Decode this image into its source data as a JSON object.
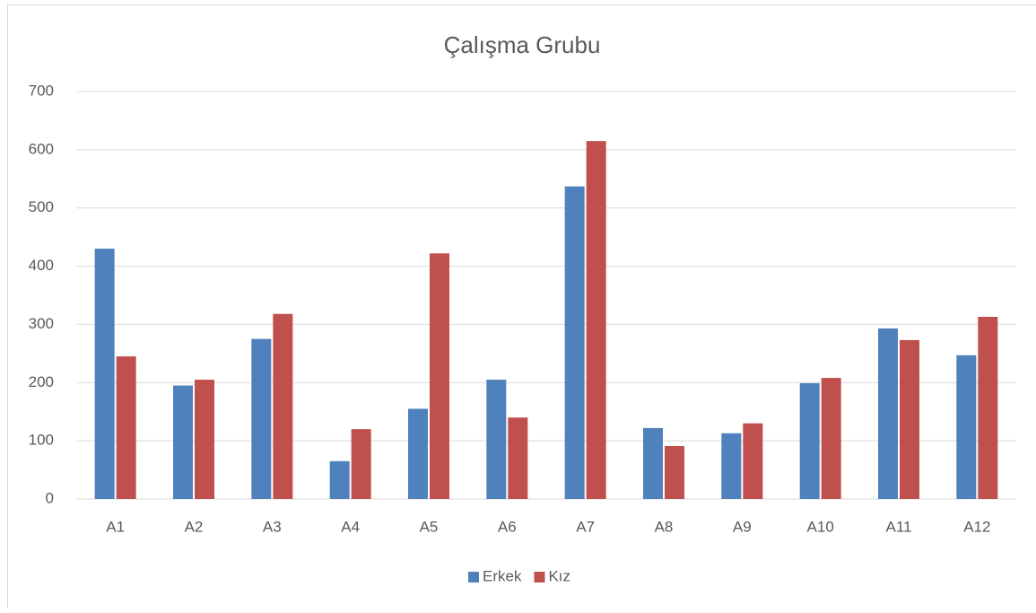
{
  "chart_data": {
    "type": "bar",
    "title": "Çalışma Grubu",
    "categories": [
      "A1",
      "A2",
      "A3",
      "A4",
      "A5",
      "A6",
      "A7",
      "A8",
      "A9",
      "A10",
      "A11",
      "A12"
    ],
    "series": [
      {
        "name": "Erkek",
        "color": "#4f81bd",
        "values": [
          430,
          195,
          275,
          65,
          155,
          205,
          537,
          122,
          113,
          199,
          293,
          247
        ]
      },
      {
        "name": "Kız",
        "color": "#c0504d",
        "values": [
          245,
          205,
          318,
          120,
          422,
          140,
          615,
          91,
          130,
          208,
          273,
          313
        ]
      }
    ],
    "ylim": [
      0,
      700
    ],
    "yticks": [
      0,
      100,
      200,
      300,
      400,
      500,
      600,
      700
    ],
    "grid": true,
    "legend": "bottom"
  }
}
